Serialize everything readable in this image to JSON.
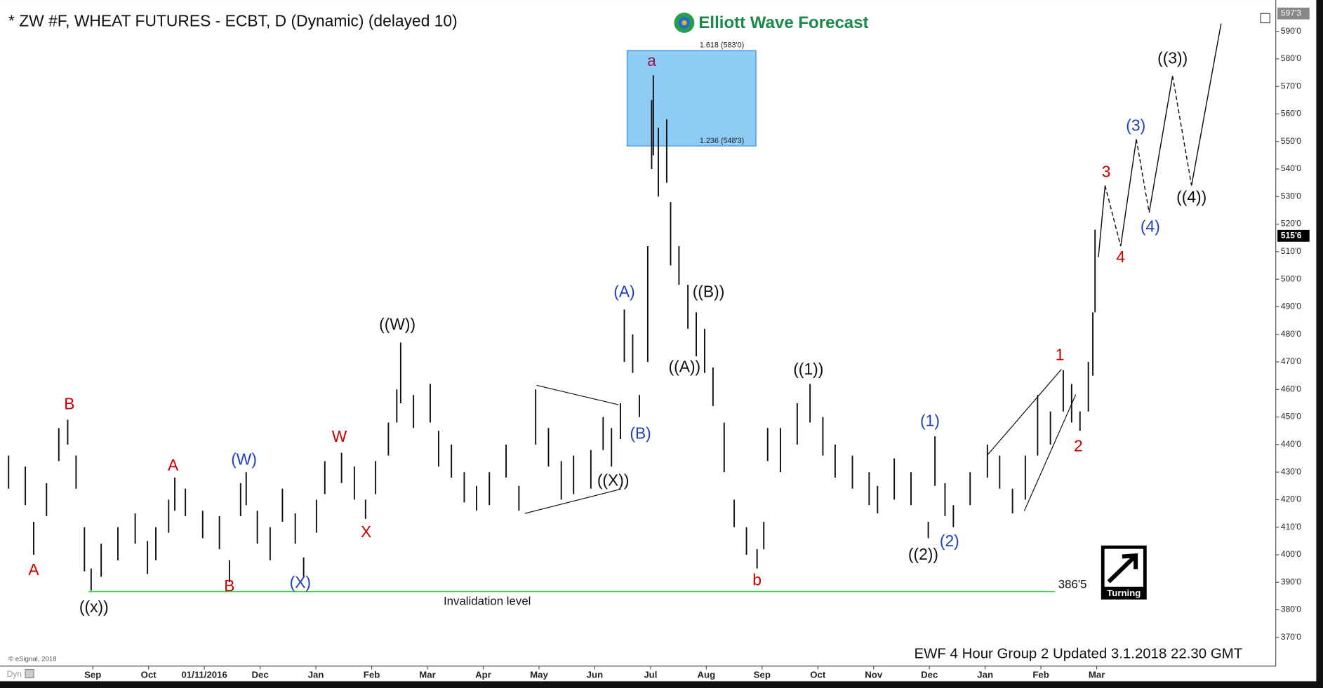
{
  "chart_data": {
    "type": "ohlc",
    "title": "* ZW #F, WHEAT FUTURES - ECBT, D (Dynamic) (delayed 10)",
    "logo": "Elliott Wave Forecast",
    "footer": "EWF 4 Hour Group 2 Updated 3.1.2018 22.30 GMT",
    "copyright": "© eSignal, 2018",
    "toolbar": "Dyn",
    "badge": "Turning",
    "color": "#111111",
    "x": [
      -1.51,
      -1.21,
      -1.06,
      -0.83,
      -0.61,
      -0.45,
      -0.3,
      -0.15,
      -0.03,
      0.15,
      0.45,
      0.76,
      0.98,
      1.13,
      1.36,
      1.47,
      1.66,
      1.97,
      2.27,
      2.45,
      2.65,
      2.75,
      2.95,
      3.18,
      3.4,
      3.63,
      3.78,
      4.01,
      4.16,
      4.46,
      4.69,
      4.89,
      5.07,
      5.3,
      5.45,
      5.52,
      5.75,
      6.05,
      6.2,
      6.43,
      6.66,
      6.88,
      7.11,
      7.41,
      7.64,
      7.94,
      8.17,
      8.4,
      8.62,
      8.93,
      9.15,
      9.3,
      9.46,
      9.53,
      9.68,
      9.8,
      9.95,
      10.02,
      10.05,
      10.14,
      10.29,
      10.36,
      10.51,
      10.67,
      10.82,
      10.97,
      11.12,
      11.32,
      11.5,
      11.72,
      11.91,
      12.03,
      12.1,
      12.33,
      12.63,
      12.86,
      13.09,
      13.31,
      13.62,
      13.92,
      14.07,
      14.37,
      14.67,
      14.98,
      15.1,
      15.28,
      15.43,
      15.73,
      16.04,
      16.26,
      16.49,
      16.72,
      16.94,
      17.17,
      17.4,
      17.55,
      17.7,
      17.85,
      17.93,
      17.97
    ],
    "high": [
      436,
      432,
      412,
      426,
      446,
      449,
      436,
      410,
      395,
      404,
      410,
      415,
      405,
      410,
      420,
      428,
      424,
      416,
      414,
      398,
      426,
      430,
      416,
      410,
      424,
      415,
      399,
      420,
      434,
      437,
      432,
      420,
      434,
      448,
      460,
      477,
      458,
      462,
      445,
      440,
      430,
      425,
      430,
      440,
      425,
      460,
      446,
      434,
      436,
      438,
      450,
      446,
      455,
      489,
      480,
      458,
      512,
      565,
      574,
      555,
      558,
      528,
      512,
      498,
      488,
      482,
      468,
      448,
      420,
      410,
      402,
      412,
      446,
      446,
      455,
      462,
      450,
      440,
      436,
      430,
      425,
      435,
      430,
      412,
      443,
      426,
      418,
      430,
      440,
      436,
      424,
      436,
      458,
      452,
      467,
      462,
      452,
      470,
      488,
      518
    ],
    "low": [
      424,
      418,
      400,
      414,
      434,
      440,
      424,
      394,
      387,
      392,
      398,
      404,
      393,
      398,
      408,
      416,
      414,
      406,
      402,
      390,
      414,
      418,
      404,
      398,
      412,
      404,
      392,
      408,
      422,
      426,
      420,
      413,
      422,
      436,
      448,
      455,
      446,
      448,
      432,
      428,
      419,
      416,
      418,
      428,
      416,
      440,
      432,
      420,
      422,
      424,
      438,
      432,
      442,
      470,
      466,
      450,
      470,
      540,
      545,
      530,
      535,
      505,
      498,
      482,
      472,
      466,
      454,
      430,
      410,
      400,
      395,
      402,
      434,
      430,
      440,
      448,
      436,
      428,
      424,
      418,
      415,
      420,
      418,
      406,
      425,
      414,
      410,
      418,
      428,
      424,
      415,
      420,
      436,
      440,
      452,
      448,
      445,
      452,
      465,
      488
    ],
    "xlim": [
      -1.664,
      21.21
    ],
    "ylim": [
      359.6,
      598.9
    ],
    "xticks": [
      {
        "value": 0,
        "label": "Sep"
      },
      {
        "value": 1,
        "label": "Oct"
      },
      {
        "value": 2,
        "label": "01/11/2016"
      },
      {
        "value": 3,
        "label": "Dec"
      },
      {
        "value": 4,
        "label": "Jan"
      },
      {
        "value": 5,
        "label": "Feb"
      },
      {
        "value": 6,
        "label": "Mar"
      },
      {
        "value": 7,
        "label": "Apr"
      },
      {
        "value": 8,
        "label": "May"
      },
      {
        "value": 9,
        "label": "Jun"
      },
      {
        "value": 10,
        "label": "Jul"
      },
      {
        "value": 11,
        "label": "Aug"
      },
      {
        "value": 12,
        "label": "Sep"
      },
      {
        "value": 13,
        "label": "Oct"
      },
      {
        "value": 14,
        "label": "Nov"
      },
      {
        "value": 15,
        "label": "Dec"
      },
      {
        "value": 16,
        "label": "Jan"
      },
      {
        "value": 17,
        "label": "Feb"
      },
      {
        "value": 18,
        "label": "Mar"
      }
    ],
    "yticks": [
      {
        "value": 370,
        "label": "370'0"
      },
      {
        "value": 380,
        "label": "380'0"
      },
      {
        "value": 390,
        "label": "390'0"
      },
      {
        "value": 400,
        "label": "400'0"
      },
      {
        "value": 410,
        "label": "410'0"
      },
      {
        "value": 420,
        "label": "420'0"
      },
      {
        "value": 430,
        "label": "430'0"
      },
      {
        "value": 440,
        "label": "440'0"
      },
      {
        "value": 450,
        "label": "450'0"
      },
      {
        "value": 460,
        "label": "460'0"
      },
      {
        "value": 470,
        "label": "470'0"
      },
      {
        "value": 480,
        "label": "480'0"
      },
      {
        "value": 490,
        "label": "490'0"
      },
      {
        "value": 500,
        "label": "500'0"
      },
      {
        "value": 510,
        "label": "510'0"
      },
      {
        "value": 520,
        "label": "520'0"
      },
      {
        "value": 530,
        "label": "530'0"
      },
      {
        "value": 540,
        "label": "540'0"
      },
      {
        "value": 550,
        "label": "550'0"
      },
      {
        "value": 560,
        "label": "560'0"
      },
      {
        "value": 570,
        "label": "570'0"
      },
      {
        "value": 580,
        "label": "580'0"
      },
      {
        "value": 590,
        "label": "590'0"
      }
    ],
    "last_price": {
      "value": 515.75,
      "label": "515'6"
    },
    "top_price": {
      "value": 597.375,
      "label": "597'3"
    },
    "fib_box": {
      "xlim": [
        9.58,
        11.89
      ],
      "color": "#8ecbf5",
      "levels": [
        {
          "value": 583,
          "label": "1.618 (583'0)"
        },
        {
          "value": 548.375,
          "label": "1.236 (548'3)"
        }
      ]
    },
    "invalidation": {
      "value": 386.625,
      "label": "386'5",
      "text": "Invalidation level",
      "xlim": [
        -0.08,
        17.25
      ],
      "color": "#33cc33"
    },
    "projection": {
      "x": [
        18.03,
        18.15,
        18.43,
        18.71,
        18.94,
        19.36,
        19.7,
        20.23
      ],
      "values": [
        508,
        534,
        512,
        550.8,
        524.2,
        573.8,
        534,
        592.8
      ]
    },
    "annotations": [
      {
        "text": "A",
        "x": -1.06,
        "y": 394.2,
        "color": "#cc0000"
      },
      {
        "text": "B",
        "x": -0.42,
        "y": 454.4,
        "color": "#cc0000"
      },
      {
        "text": "((x))",
        "x": 0.02,
        "y": 380.7,
        "color": "#111111"
      },
      {
        "text": "A",
        "x": 1.44,
        "y": 432.1,
        "color": "#cc0000"
      },
      {
        "text": "B",
        "x": 2.45,
        "y": 388.3,
        "color": "#cc0000"
      },
      {
        "text": "(W)",
        "x": 2.71,
        "y": 434.2,
        "color": "#1f3fbf"
      },
      {
        "text": "(X)",
        "x": 3.72,
        "y": 389.6,
        "color": "#1f3fbf"
      },
      {
        "text": "W",
        "x": 4.42,
        "y": 442.5,
        "color": "#cc0000"
      },
      {
        "text": "X",
        "x": 4.9,
        "y": 407.9,
        "color": "#cc0000"
      },
      {
        "text": "((W))",
        "x": 5.46,
        "y": 483.2,
        "color": "#111111"
      },
      {
        "text": "((X))",
        "x": 9.33,
        "y": 426.6,
        "color": "#111111"
      },
      {
        "text": "(A)",
        "x": 9.53,
        "y": 495.1,
        "color": "#1f3fbf"
      },
      {
        "text": "(B)",
        "x": 9.82,
        "y": 443.7,
        "color": "#1f3fbf"
      },
      {
        "text": "a",
        "x": 10.02,
        "y": 579,
        "color": "#9b1b4b"
      },
      {
        "text": "((A))",
        "x": 10.61,
        "y": 467.9,
        "color": "#111111"
      },
      {
        "text": "((B))",
        "x": 11.04,
        "y": 495.1,
        "color": "#111111"
      },
      {
        "text": "b",
        "x": 11.91,
        "y": 390.5,
        "color": "#cc0000"
      },
      {
        "text": "((1))",
        "x": 12.83,
        "y": 467,
        "color": "#111111"
      },
      {
        "text": "((2))",
        "x": 14.89,
        "y": 399.7,
        "color": "#111111"
      },
      {
        "text": "(1)",
        "x": 15.01,
        "y": 448.3,
        "color": "#1f3fbf"
      },
      {
        "text": "(2)",
        "x": 15.36,
        "y": 404.6,
        "color": "#1f3fbf"
      },
      {
        "text": "1",
        "x": 17.34,
        "y": 472.2,
        "color": "#cc0000"
      },
      {
        "text": "2",
        "x": 17.67,
        "y": 439.1,
        "color": "#cc0000"
      },
      {
        "text": "3",
        "x": 18.17,
        "y": 538.6,
        "color": "#cc0000"
      },
      {
        "text": "4",
        "x": 18.43,
        "y": 507.7,
        "color": "#cc0000"
      },
      {
        "text": "(3)",
        "x": 18.7,
        "y": 555.4,
        "color": "#1f3fbf"
      },
      {
        "text": "(4)",
        "x": 18.96,
        "y": 518.7,
        "color": "#1f3fbf"
      },
      {
        "text": "((3))",
        "x": 19.36,
        "y": 579.9,
        "color": "#111111"
      },
      {
        "text": "((4))",
        "x": 19.7,
        "y": 529.4,
        "color": "#111111"
      }
    ]
  }
}
